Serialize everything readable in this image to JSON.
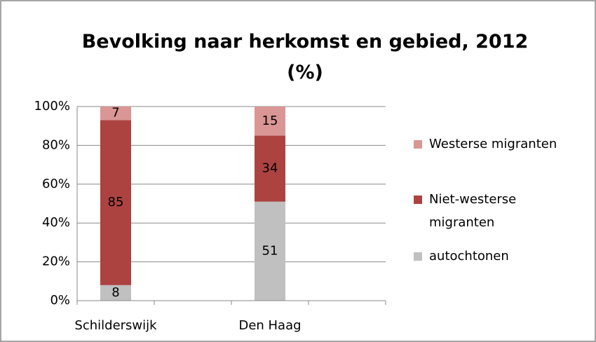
{
  "chart_data": {
    "type": "bar",
    "stacked": true,
    "title": "Bevolking naar herkomst en gebied, 2012 (%)",
    "categories": [
      "Schilderswijk",
      "Den Haag"
    ],
    "series": [
      {
        "name": "autochtonen",
        "color": "#c0c0c0",
        "values": [
          8,
          51
        ]
      },
      {
        "name": "Niet-westerse migranten",
        "color": "#ac4341",
        "values": [
          85,
          34
        ]
      },
      {
        "name": "Westerse migranten",
        "color": "#d99694",
        "values": [
          7,
          15
        ]
      }
    ],
    "ylim": [
      0,
      100
    ],
    "yticks": [
      {
        "value": 0,
        "label": "0%"
      },
      {
        "value": 20,
        "label": "20%"
      },
      {
        "value": 40,
        "label": "40%"
      },
      {
        "value": 60,
        "label": "60%"
      },
      {
        "value": 80,
        "label": "80%"
      },
      {
        "value": 100,
        "label": "100%"
      }
    ],
    "grid": true,
    "legend": "right"
  }
}
